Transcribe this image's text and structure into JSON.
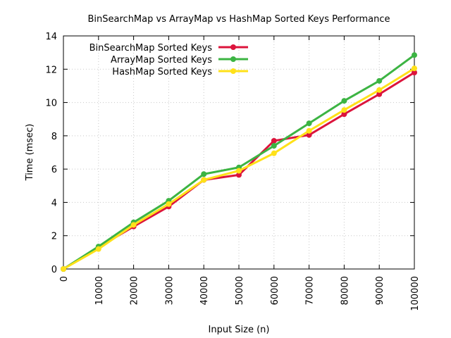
{
  "chart_data": {
    "type": "line",
    "title": "BinSearchMap vs ArrayMap vs HashMap Sorted Keys Performance",
    "xlabel": "Input Size (n)",
    "ylabel": "Time (msec)",
    "x": [
      0,
      10000,
      20000,
      30000,
      40000,
      50000,
      60000,
      70000,
      80000,
      90000,
      100000
    ],
    "x_tick_labels": [
      "0",
      "10000",
      "20000",
      "30000",
      "40000",
      "50000",
      "60000",
      "70000",
      "80000",
      "90000",
      "100000"
    ],
    "y_ticks": [
      0,
      2,
      4,
      6,
      8,
      10,
      12,
      14
    ],
    "y_tick_labels": [
      "0",
      "2",
      "4",
      "6",
      "8",
      "10",
      "12",
      "14"
    ],
    "xlim": [
      0,
      100000
    ],
    "ylim": [
      0,
      14
    ],
    "grid": true,
    "legend_position": "top-left",
    "series": [
      {
        "name": "BinSearchMap Sorted Keys",
        "color": "#dc143c",
        "values": [
          0,
          1.3,
          2.55,
          3.75,
          5.35,
          5.65,
          7.7,
          8.05,
          9.3,
          10.5,
          11.8
        ]
      },
      {
        "name": "ArrayMap Sorted Keys",
        "color": "#3cb443",
        "values": [
          0,
          1.35,
          2.8,
          4.1,
          5.7,
          6.1,
          7.4,
          8.75,
          10.1,
          11.3,
          12.85
        ]
      },
      {
        "name": "HashMap Sorted Keys",
        "color": "#ffe119",
        "values": [
          0,
          1.2,
          2.65,
          3.9,
          5.35,
          5.9,
          6.95,
          8.3,
          9.55,
          10.75,
          12.05
        ]
      }
    ]
  }
}
